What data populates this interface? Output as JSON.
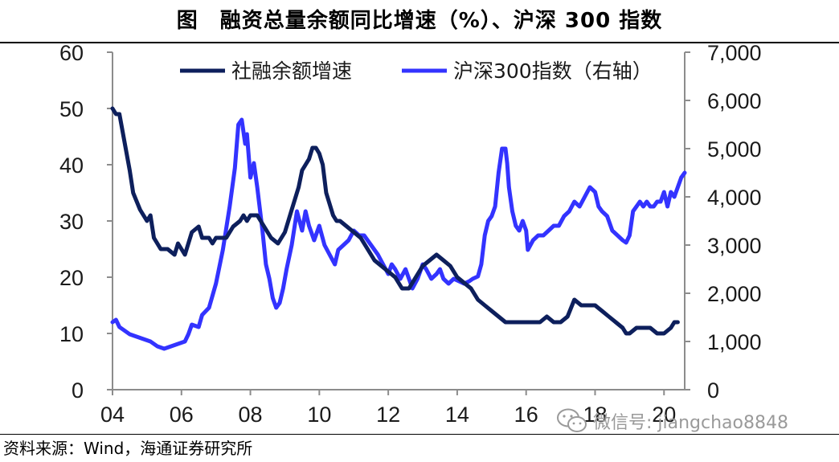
{
  "header": {
    "title": "图　融资总量余额同比增速（%）、沪深 300 指数"
  },
  "footer": {
    "source": "资料来源：Wind，海通证券研究所"
  },
  "watermark": {
    "icon": "wechat-icon",
    "text": "微信号: jiangchao8848"
  },
  "colors": {
    "series_1": "#0d1f5c",
    "series_2": "#3333ff",
    "axis": "#8c8c8c"
  },
  "chart_data": {
    "type": "line",
    "title": "融资总量余额同比增速（%）、沪深 300 指数",
    "x_axis": {
      "min": 2004,
      "max": 2020.6,
      "tick_values": [
        2004,
        2006,
        2008,
        2010,
        2012,
        2014,
        2016,
        2018,
        2020
      ],
      "tick_labels": [
        "04",
        "06",
        "08",
        "10",
        "12",
        "14",
        "16",
        "18",
        "20"
      ]
    },
    "y_left": {
      "min": 0,
      "max": 60,
      "ticks": [
        0,
        10,
        20,
        30,
        40,
        50,
        60
      ],
      "tick_labels": [
        "0",
        "10",
        "20",
        "30",
        "40",
        "50",
        "60"
      ]
    },
    "y_right": {
      "min": 0,
      "max": 7000,
      "ticks": [
        0,
        1000,
        2000,
        3000,
        4000,
        5000,
        6000,
        7000
      ],
      "tick_labels": [
        "0",
        "1,000",
        "2,000",
        "3,000",
        "4,000",
        "5,000",
        "6,000",
        "7,000"
      ]
    },
    "grid": false,
    "legend_position": "top",
    "series": [
      {
        "name": "社融余额增速",
        "axis": "left",
        "color": "#0d1f5c",
        "x": [
          2004.0,
          2004.1,
          2004.2,
          2004.35,
          2004.5,
          2004.6,
          2004.8,
          2005.0,
          2005.1,
          2005.2,
          2005.4,
          2005.5,
          2005.6,
          2005.8,
          2005.9,
          2006.0,
          2006.1,
          2006.3,
          2006.5,
          2006.6,
          2006.8,
          2006.9,
          2007.0,
          2007.3,
          2007.5,
          2007.7,
          2007.8,
          2007.9,
          2008.0,
          2008.2,
          2008.4,
          2008.6,
          2008.8,
          2008.9,
          2009.0,
          2009.2,
          2009.4,
          2009.5,
          2009.6,
          2009.7,
          2009.8,
          2009.9,
          2010.0,
          2010.1,
          2010.2,
          2010.3,
          2010.4,
          2010.5,
          2010.6,
          2010.8,
          2011.0,
          2011.2,
          2011.4,
          2011.6,
          2011.8,
          2012.0,
          2012.2,
          2012.4,
          2012.5,
          2012.6,
          2012.8,
          2013.0,
          2013.2,
          2013.4,
          2013.6,
          2013.8,
          2014.0,
          2014.2,
          2014.4,
          2014.6,
          2014.8,
          2015.0,
          2015.2,
          2015.4,
          2015.6,
          2015.8,
          2016.0,
          2016.2,
          2016.4,
          2016.6,
          2016.8,
          2016.9,
          2017.0,
          2017.2,
          2017.4,
          2017.6,
          2017.8,
          2018.0,
          2018.2,
          2018.4,
          2018.6,
          2018.8,
          2018.9,
          2019.0,
          2019.2,
          2019.4,
          2019.6,
          2019.8,
          2020.0,
          2020.2,
          2020.3,
          2020.4
        ],
        "values": [
          50,
          49,
          49,
          44,
          39,
          35,
          32,
          30,
          31,
          27,
          25,
          25,
          25,
          24,
          26,
          25,
          24,
          28,
          29,
          27,
          27,
          26,
          27,
          27,
          29,
          30,
          31,
          30,
          31,
          31,
          29,
          27,
          26,
          27,
          28,
          32,
          36,
          39,
          40,
          41,
          43,
          43,
          42,
          40,
          35,
          33,
          31,
          30,
          30,
          29,
          28,
          27,
          25,
          23,
          22,
          21,
          20,
          18,
          18,
          18,
          20,
          22,
          23,
          24,
          23,
          22,
          20,
          19,
          18,
          16,
          15,
          14,
          13,
          12,
          12,
          12,
          12,
          12,
          12,
          13,
          12,
          12,
          12,
          13,
          16,
          15,
          15,
          15,
          14,
          13,
          12,
          11,
          10,
          10,
          11,
          11,
          11,
          10,
          10,
          11,
          12,
          12
        ]
      },
      {
        "name": "沪深300指数（右轴）",
        "axis": "right",
        "color": "#3333ff",
        "x": [
          2004.0,
          2004.1,
          2004.2,
          2004.3,
          2004.5,
          2004.7,
          2004.9,
          2005.1,
          2005.3,
          2005.5,
          2005.7,
          2005.9,
          2006.1,
          2006.2,
          2006.3,
          2006.5,
          2006.6,
          2006.8,
          2007.0,
          2007.2,
          2007.4,
          2007.55,
          2007.65,
          2007.75,
          2007.85,
          2007.9,
          2008.0,
          2008.1,
          2008.2,
          2008.35,
          2008.45,
          2008.55,
          2008.65,
          2008.75,
          2008.85,
          2008.95,
          2009.05,
          2009.2,
          2009.35,
          2009.5,
          2009.6,
          2009.7,
          2009.85,
          2010.0,
          2010.15,
          2010.3,
          2010.45,
          2010.55,
          2010.7,
          2010.85,
          2011.0,
          2011.15,
          2011.3,
          2011.5,
          2011.7,
          2011.85,
          2012.0,
          2012.1,
          2012.2,
          2012.35,
          2012.5,
          2012.6,
          2012.7,
          2012.85,
          2013.0,
          2013.1,
          2013.25,
          2013.4,
          2013.5,
          2013.6,
          2013.75,
          2013.9,
          2014.05,
          2014.2,
          2014.35,
          2014.45,
          2014.6,
          2014.7,
          2014.8,
          2014.9,
          2015.0,
          2015.1,
          2015.2,
          2015.3,
          2015.4,
          2015.45,
          2015.5,
          2015.6,
          2015.7,
          2015.8,
          2015.9,
          2016.0,
          2016.05,
          2016.2,
          2016.35,
          2016.5,
          2016.65,
          2016.8,
          2016.95,
          2017.1,
          2017.25,
          2017.4,
          2017.55,
          2017.7,
          2017.85,
          2018.0,
          2018.1,
          2018.2,
          2018.35,
          2018.5,
          2018.65,
          2018.8,
          2018.9,
          2019.0,
          2019.1,
          2019.2,
          2019.3,
          2019.4,
          2019.5,
          2019.6,
          2019.7,
          2019.8,
          2019.9,
          2020.0,
          2020.1,
          2020.2,
          2020.3,
          2020.4,
          2020.5,
          2020.6
        ],
        "values": [
          1400,
          1450,
          1300,
          1250,
          1150,
          1100,
          1050,
          1000,
          900,
          850,
          900,
          950,
          1000,
          1150,
          1350,
          1300,
          1550,
          1700,
          2200,
          2900,
          3800,
          4600,
          5500,
          5600,
          5100,
          5300,
          4400,
          4700,
          4200,
          3300,
          2600,
          2300,
          1900,
          1700,
          1800,
          2100,
          2500,
          3000,
          3700,
          3300,
          3700,
          3400,
          3100,
          3400,
          3000,
          2800,
          2600,
          2900,
          3000,
          3100,
          3300,
          3200,
          3200,
          3000,
          2800,
          2600,
          2400,
          2600,
          2500,
          2300,
          2500,
          2300,
          2100,
          2300,
          2600,
          2500,
          2300,
          2400,
          2500,
          2300,
          2200,
          2300,
          2250,
          2200,
          2250,
          2300,
          2350,
          2600,
          3200,
          3500,
          3600,
          3800,
          4500,
          5000,
          5000,
          4700,
          4200,
          3700,
          3400,
          3300,
          3500,
          3300,
          2900,
          3100,
          3200,
          3200,
          3300,
          3400,
          3400,
          3600,
          3700,
          3900,
          3800,
          4000,
          4200,
          4100,
          3800,
          3700,
          3600,
          3300,
          3200,
          3100,
          3050,
          3200,
          3700,
          3800,
          3900,
          3800,
          3900,
          3800,
          3800,
          3900,
          3900,
          4100,
          3800,
          4100,
          4000,
          4200,
          4400,
          4500
        ]
      }
    ]
  }
}
